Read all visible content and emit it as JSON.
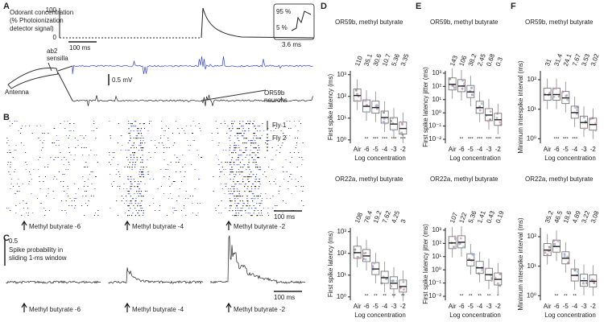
{
  "panels": {
    "A": {
      "label": "A",
      "ylabel": [
        "Odorant concentration",
        "(% Photoionization",
        "detector signal)"
      ],
      "yticks": [
        "100",
        "0"
      ],
      "time_scale": "100 ms",
      "inset_top": "95 %",
      "inset_bottom": "5 %",
      "inset_time": "3.6 ms",
      "voltage_scale": "0.5 mV",
      "sensilla": [
        "ab2",
        "sensilla"
      ],
      "antenna": "Antenna",
      "neurons": [
        "OR59b",
        "neurons"
      ]
    },
    "B": {
      "label": "B",
      "flies": [
        "Fly 1",
        "Fly 2"
      ],
      "time_scale": "100 ms",
      "stimuli": [
        "Methyl butyrate -6",
        "Methyl butyrate -4",
        "Methyl butyrate -2"
      ]
    },
    "C": {
      "label": "C",
      "prob_scale": "0.5",
      "ylabel": [
        "Spike probability in",
        "sliding 1-ms window"
      ],
      "time_scale": "100 ms",
      "stimuli": [
        "Methyl butyrate -6",
        "Methyl butyrate -4",
        "Methyl butyrate -2"
      ]
    }
  },
  "box_panels": [
    {
      "label": "D",
      "plots": [
        {
          "title": "OR59b, methyl butyrate",
          "ylabel": "First spike latency (ms)",
          "xlabel": "Log concentration",
          "categories": [
            "Air",
            "-6",
            "-5",
            "-4",
            "-3",
            "-2"
          ],
          "medians": [
            110,
            35.1,
            30.6,
            10.7,
            5.36,
            3.35
          ],
          "stars": [
            "**",
            "***",
            "***",
            "***",
            "***"
          ],
          "ylim": [
            0.7,
            1500
          ],
          "yticks": [
            {
              "value": 1,
              "label": "10⁰"
            },
            {
              "value": 10,
              "label": "10¹"
            },
            {
              "value": 100,
              "label": "10²"
            },
            {
              "value": 1000,
              "label": "10³"
            }
          ]
        },
        {
          "title": "OR22a, methyl butyrate",
          "ylabel": "First spike latency (ms)",
          "xlabel": "Log concentration",
          "categories": [
            "Air",
            "-6",
            "-5",
            "-4",
            "-3",
            "-2"
          ],
          "medians": [
            108,
            76.4,
            19.2,
            7.62,
            4.25,
            3
          ],
          "stars": [
            "**",
            "**",
            "**",
            "**",
            "**"
          ],
          "ylim": [
            0.7,
            1500
          ],
          "yticks": [
            {
              "value": 1,
              "label": "10⁰"
            },
            {
              "value": 10,
              "label": "10¹"
            },
            {
              "value": 100,
              "label": "10²"
            },
            {
              "value": 1000,
              "label": "10³"
            }
          ]
        }
      ]
    },
    {
      "label": "E",
      "plots": [
        {
          "title": "OR59b, methyl butyrate",
          "ylabel": "First spike latency jitter (ms)",
          "xlabel": "Log concentration",
          "categories": [
            "Air",
            "-6",
            "-5",
            "-4",
            "-3",
            "-2"
          ],
          "medians": [
            143,
            106,
            38.2,
            2.45,
            0.68,
            0.3
          ],
          "stars": [
            "**",
            "***",
            "***",
            "***",
            "***"
          ],
          "ylim": [
            0.005,
            1500
          ],
          "yticks": [
            {
              "value": 0.01,
              "label": "10⁻²"
            },
            {
              "value": 0.1,
              "label": "10⁻¹"
            },
            {
              "value": 1,
              "label": "10⁰"
            },
            {
              "value": 10,
              "label": "10¹"
            },
            {
              "value": 100,
              "label": "10²"
            },
            {
              "value": 1000,
              "label": "10³"
            }
          ]
        },
        {
          "title": "OR22a, methyl butyrate",
          "ylabel": "First spike latency jitter (ms)",
          "xlabel": "Log concentration",
          "categories": [
            "Air",
            "-6",
            "-5",
            "-4",
            "-3",
            "-2"
          ],
          "medians": [
            107,
            122,
            5.36,
            1.41,
            0.43,
            0.19
          ],
          "stars": [
            "**",
            "**",
            "**",
            "**",
            "*"
          ],
          "ylim": [
            0.005,
            1500
          ],
          "yticks": [
            {
              "value": 0.01,
              "label": "10⁻²"
            },
            {
              "value": 0.1,
              "label": "10⁻¹"
            },
            {
              "value": 1,
              "label": "10⁰"
            },
            {
              "value": 10,
              "label": "10¹"
            },
            {
              "value": 100,
              "label": "10²"
            },
            {
              "value": 1000,
              "label": "10³"
            }
          ]
        }
      ]
    },
    {
      "label": "F",
      "plots": [
        {
          "title": "OR59b, methyl butyrate",
          "ylabel": "Minimum interspike interval (ms)",
          "xlabel": "Log concentration",
          "categories": [
            "Air",
            "-6",
            "-5",
            "-4",
            "-3",
            "-2"
          ],
          "medians": [
            31,
            31.4,
            24.1,
            7.67,
            3.53,
            3.02
          ],
          "stars": [
            "***",
            "***",
            "***"
          ],
          "ylim": [
            0.7,
            200
          ],
          "yticks": [
            {
              "value": 1,
              "label": "10⁰"
            },
            {
              "value": 10,
              "label": "10¹"
            },
            {
              "value": 100,
              "label": "10²"
            }
          ]
        },
        {
          "title": "OR22a, methyl butyrate",
          "ylabel": "Minimum interspike interval (ms)",
          "xlabel": "Log concentration",
          "categories": [
            "Air",
            "-6",
            "-5",
            "-4",
            "-3",
            "-2"
          ],
          "medians": [
            35.2,
            46.5,
            18.6,
            4.89,
            3.22,
            3.08
          ],
          "stars": [
            "**",
            "**",
            "**"
          ],
          "ylim": [
            0.7,
            200
          ],
          "yticks": [
            {
              "value": 1,
              "label": "10⁰"
            },
            {
              "value": 10,
              "label": "10¹"
            },
            {
              "value": 100,
              "label": "10²"
            }
          ]
        }
      ]
    }
  ]
}
